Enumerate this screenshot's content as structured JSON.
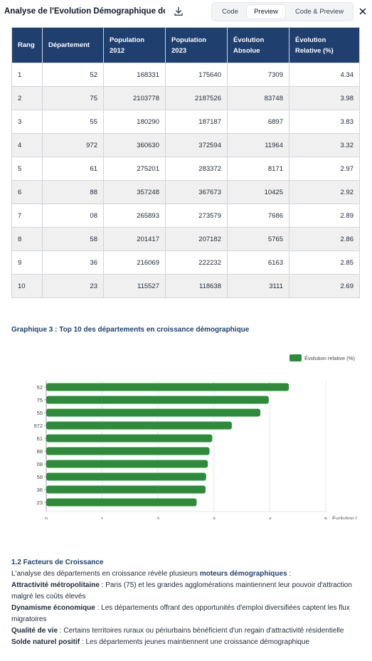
{
  "header": {
    "title": "Analyse de l'Évolution Démographique des...",
    "tabs": [
      {
        "label": "Code"
      },
      {
        "label": "Preview"
      },
      {
        "label": "Code & Preview"
      }
    ]
  },
  "table": {
    "headers": [
      "Rang",
      "Département",
      "Population 2012",
      "Population 2023",
      "Évolution Absolue",
      "Évolution Relative (%)"
    ],
    "rows": [
      [
        "1",
        "52",
        "168331",
        "175640",
        "7309",
        "4.34"
      ],
      [
        "2",
        "75",
        "2103778",
        "2187526",
        "83748",
        "3.98"
      ],
      [
        "3",
        "55",
        "180290",
        "187187",
        "6897",
        "3.83"
      ],
      [
        "4",
        "972",
        "360630",
        "372594",
        "11964",
        "3.32"
      ],
      [
        "5",
        "61",
        "275201",
        "283372",
        "8171",
        "2.97"
      ],
      [
        "6",
        "88",
        "357248",
        "367673",
        "10425",
        "2.92"
      ],
      [
        "7",
        "08",
        "265893",
        "273579",
        "7686",
        "2.89"
      ],
      [
        "8",
        "58",
        "201417",
        "207182",
        "5765",
        "2.86"
      ],
      [
        "9",
        "36",
        "216069",
        "222232",
        "6163",
        "2.85"
      ],
      [
        "10",
        "23",
        "115527",
        "118638",
        "3111",
        "2.69"
      ]
    ]
  },
  "chart_title": "Graphique 3 : Top 10 des départements en croissance démographique",
  "chart_data": {
    "type": "bar",
    "orientation": "horizontal",
    "categories": [
      "52",
      "75",
      "55",
      "972",
      "61",
      "88",
      "08",
      "58",
      "36",
      "23"
    ],
    "series": [
      {
        "name": "Évolution relative (%)",
        "values": [
          4.34,
          3.98,
          3.83,
          3.32,
          2.97,
          2.92,
          2.89,
          2.86,
          2.85,
          2.69
        ]
      }
    ],
    "xticks": [
      "0",
      "1",
      "2",
      "3",
      "4",
      "5"
    ],
    "xlim": [
      0,
      5
    ],
    "xlabel": "Évolution (",
    "legend": "top-right",
    "grid": true,
    "bar_color": "#2e8b3a"
  },
  "section": {
    "heading": "1.2 Facteurs de Croissance",
    "intro_prefix": "L'analyse des départements en croissance révèle plusieurs ",
    "intro_highlight": "moteurs démographiques",
    "intro_suffix": " :",
    "items": [
      {
        "term": "Attractivité métropolitaine",
        "text": " : Paris (75) et les grandes agglomérations maintiennent leur pouvoir d'attraction malgré les coûts élevés"
      },
      {
        "term": "Dynamisme économique",
        "text": " : Les départements offrant des opportunités d'emploi diversifiées captent les flux migratoires"
      },
      {
        "term": "Qualité de vie",
        "text": " : Certains territoires ruraux ou périurbains bénéficient d'un regain d'attractivité résidentielle"
      },
      {
        "term": "Solde naturel positif",
        "text": " : Les départements jeunes maintiennent une croissance démographique"
      }
    ]
  },
  "colors": {
    "header_bg": "#1f3f6e",
    "accent": "#1f3f6e",
    "bar": "#2e8b3a"
  }
}
